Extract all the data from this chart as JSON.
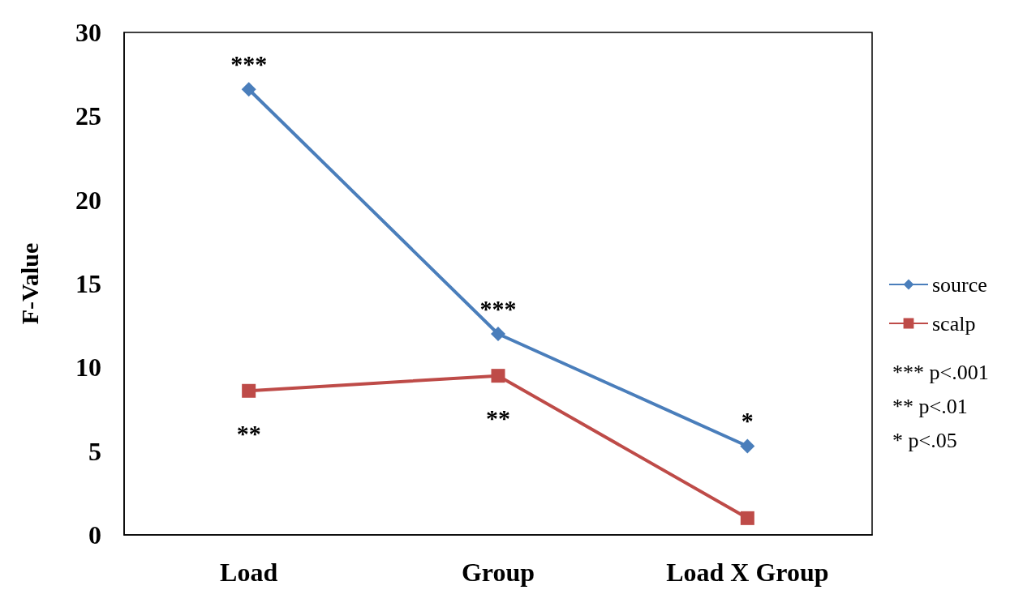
{
  "chart_data": {
    "type": "line",
    "ylabel": "F-Value",
    "categories": [
      "Load",
      "Group",
      "Load X Group"
    ],
    "series": [
      {
        "name": "source",
        "color": "#4a7ebb",
        "marker": "diamond",
        "values": [
          26.6,
          12.0,
          5.3
        ]
      },
      {
        "name": "scalp",
        "color": "#be4b48",
        "marker": "square",
        "values": [
          8.6,
          9.5,
          1.0
        ]
      }
    ],
    "ylim": [
      0,
      30
    ],
    "yticks": [
      0,
      5,
      10,
      15,
      20,
      25,
      30
    ],
    "grid": false,
    "legend": "right",
    "annotations": [
      {
        "text": "***",
        "x": "Load",
        "y": 26.6
      },
      {
        "text": "**",
        "x": "Load",
        "y": 8.6
      },
      {
        "text": "***",
        "x": "Group",
        "y": 12.0
      },
      {
        "text": "**",
        "x": "Group",
        "y": 9.5
      },
      {
        "text": "*",
        "x": "Load X Group",
        "y": 5.3
      },
      "*** p<.001",
      "** p<.01",
      "* p<.05"
    ]
  }
}
